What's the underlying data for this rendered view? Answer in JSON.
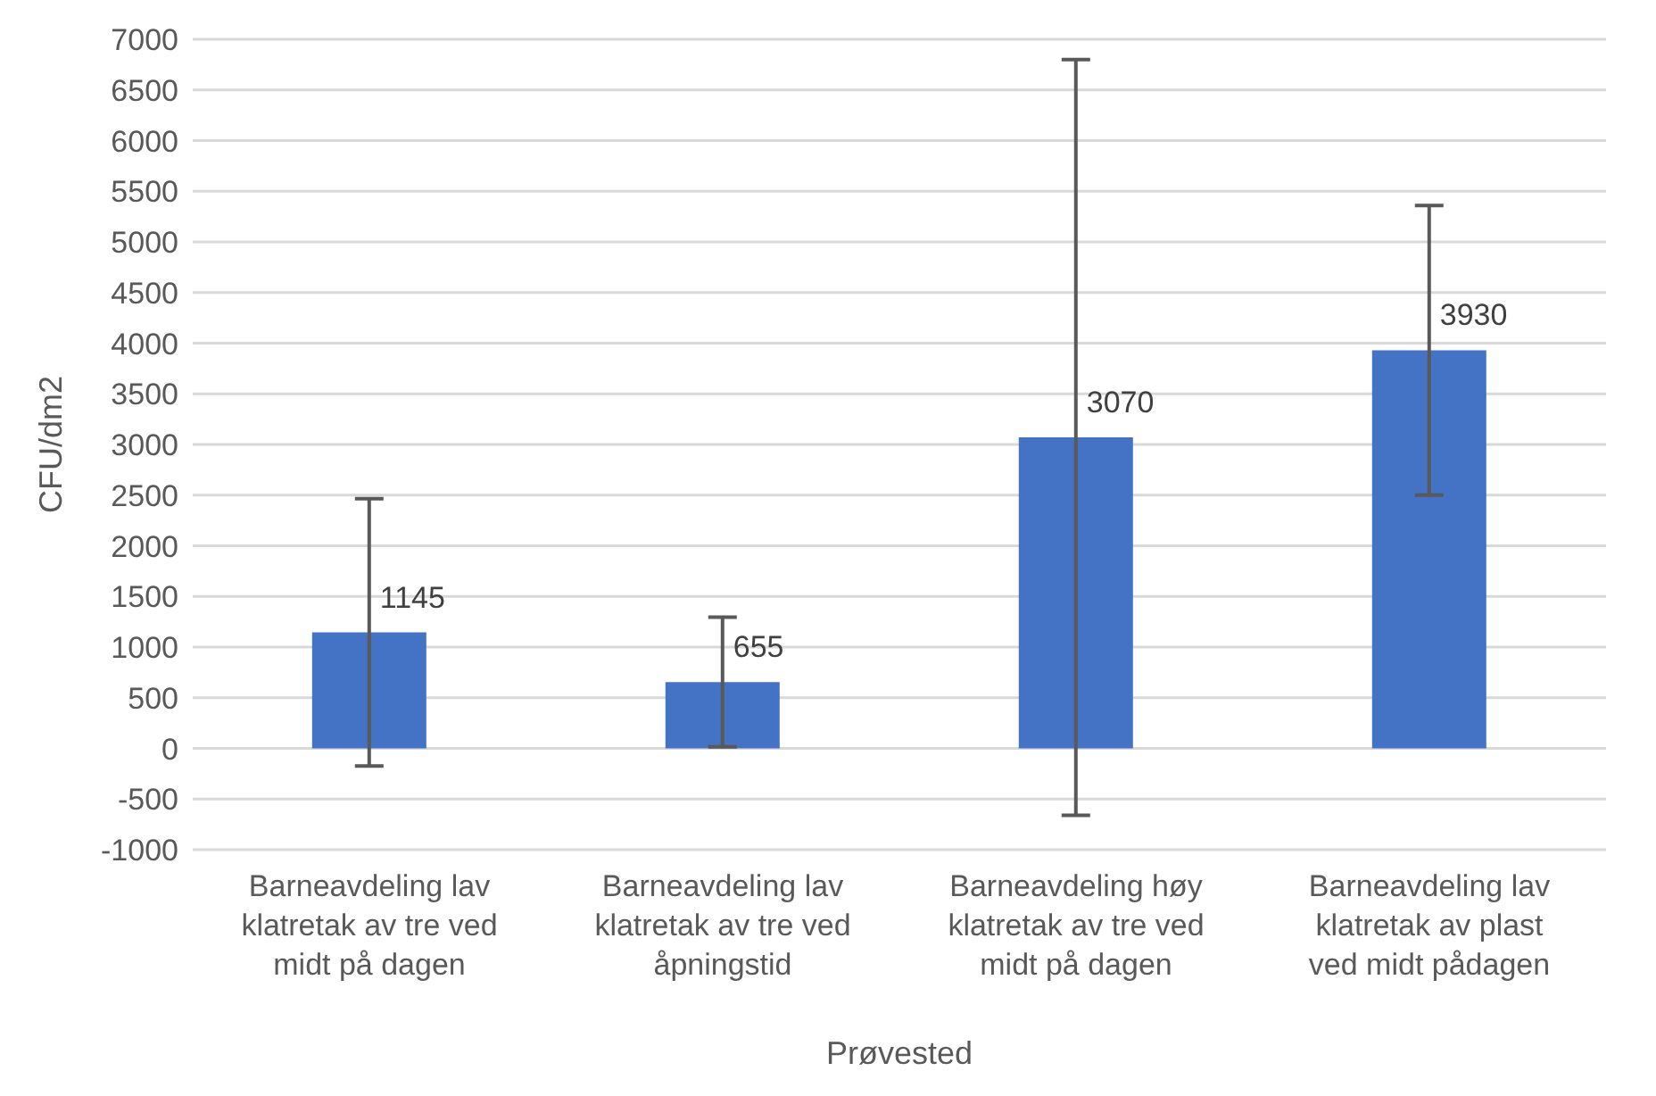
{
  "chart_data": {
    "type": "bar",
    "xlabel": "Prøvested",
    "ylabel": "CFU/dm2",
    "categories": [
      "Barneavdeling lav klatretak av tre ved midt på dagen",
      "Barneavdeling lav klatretak av tre ved åpningstid",
      "Barneavdeling høy klatretak av tre ved midt på dagen",
      "Barneavdeling lav klatretak av plast ved midt pådagen"
    ],
    "values": [
      1145,
      655,
      3070,
      3930
    ],
    "errors": [
      1320,
      640,
      3730,
      1430
    ],
    "color": "#4472c4",
    "ylim": [
      -1000,
      7000
    ],
    "yticks": [
      -1000,
      -500,
      0,
      500,
      1000,
      1500,
      2000,
      2500,
      3000,
      3500,
      4000,
      4500,
      5000,
      5500,
      6000,
      6500,
      7000
    ],
    "grid": "y",
    "data_labels": true
  }
}
